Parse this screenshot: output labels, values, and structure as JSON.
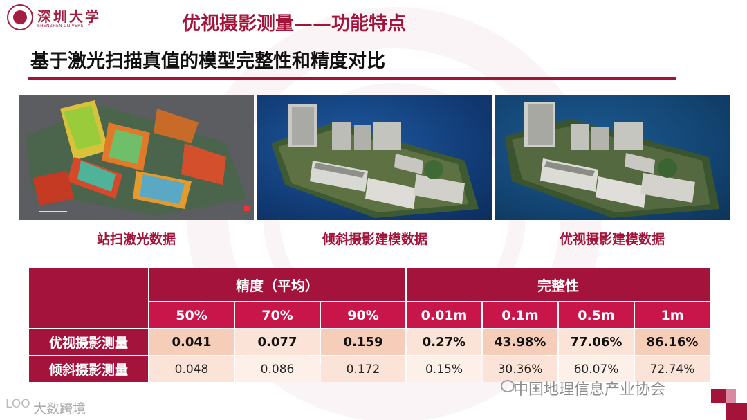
{
  "logo": {
    "name_cn": "深圳大学",
    "name_en": "SHENZHEN UNIVERSITY"
  },
  "title": "优视摄影测量——功能特点",
  "subtitle": "基于激光扫描真值的模型完整性和精度对比",
  "panels": [
    {
      "caption": "站扫激光数据"
    },
    {
      "caption": "倾斜摄影建模数据"
    },
    {
      "caption": "优视摄影建模数据"
    }
  ],
  "table": {
    "group_headers": [
      "精度（平均）",
      "完整性"
    ],
    "columns": [
      "50%",
      "70%",
      "90%",
      "0.01m",
      "0.1m",
      "0.5m",
      "1m"
    ],
    "rows": [
      {
        "label": "优视摄影测量",
        "values": [
          "0.041",
          "0.077",
          "0.159",
          "0.27%",
          "43.98%",
          "77.06%",
          "86.16%"
        ]
      },
      {
        "label": "倾斜摄影测量",
        "values": [
          "0.048",
          "0.086",
          "0.172",
          "0.15%",
          "30.36%",
          "60.07%",
          "72.74%"
        ]
      }
    ]
  },
  "watermarks": {
    "right": "中国地理信息产业协会",
    "left_icon": "LOO",
    "left": "大数跨境"
  },
  "colors": {
    "brand": "#a3133a",
    "header": "#c8164a",
    "row_strong": "#f5cdb9",
    "row_light": "#fbe4d7"
  }
}
